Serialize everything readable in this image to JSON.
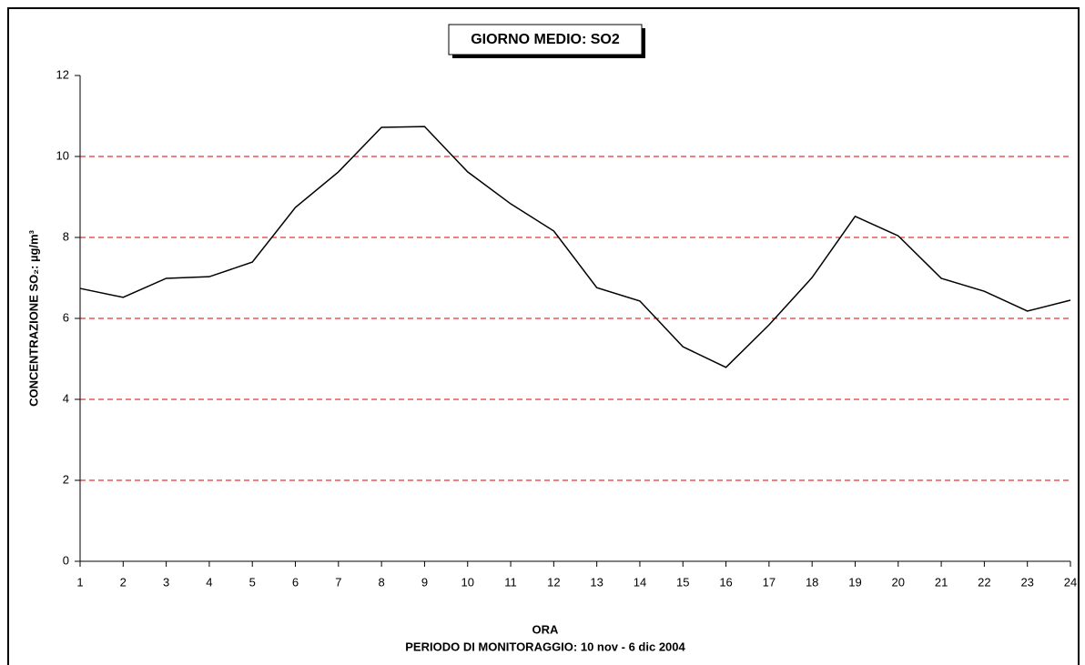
{
  "chart_data": {
    "type": "line",
    "title": "GIORNO MEDIO: SO2",
    "x_label": "ORA",
    "subtitle": "PERIODO DI MONITORAGGIO: 10 nov - 6 dic 2004",
    "y_label": "CONCENTRAZIONE SO₂: µg/m³",
    "x": [
      1,
      2,
      3,
      4,
      5,
      6,
      7,
      8,
      9,
      10,
      11,
      12,
      13,
      14,
      15,
      16,
      17,
      18,
      19,
      20,
      21,
      22,
      23,
      24
    ],
    "series": [
      {
        "name": "SO2",
        "color": "#000000",
        "values": [
          6.74,
          6.52,
          6.99,
          7.03,
          7.39,
          8.74,
          9.62,
          10.72,
          10.74,
          9.62,
          8.83,
          8.16,
          6.76,
          6.43,
          5.3,
          4.79,
          5.84,
          7.01,
          8.52,
          8.04,
          6.99,
          6.67,
          6.18,
          6.45
        ]
      }
    ],
    "xlim": [
      1,
      24
    ],
    "xticks": [
      1,
      2,
      3,
      4,
      5,
      6,
      7,
      8,
      9,
      10,
      11,
      12,
      13,
      14,
      15,
      16,
      17,
      18,
      19,
      20,
      21,
      22,
      23,
      24
    ],
    "ylim": [
      0,
      12
    ],
    "yticks": [
      0,
      2,
      4,
      6,
      8,
      10,
      12
    ],
    "grid": true,
    "grid_color": "#e00000"
  }
}
